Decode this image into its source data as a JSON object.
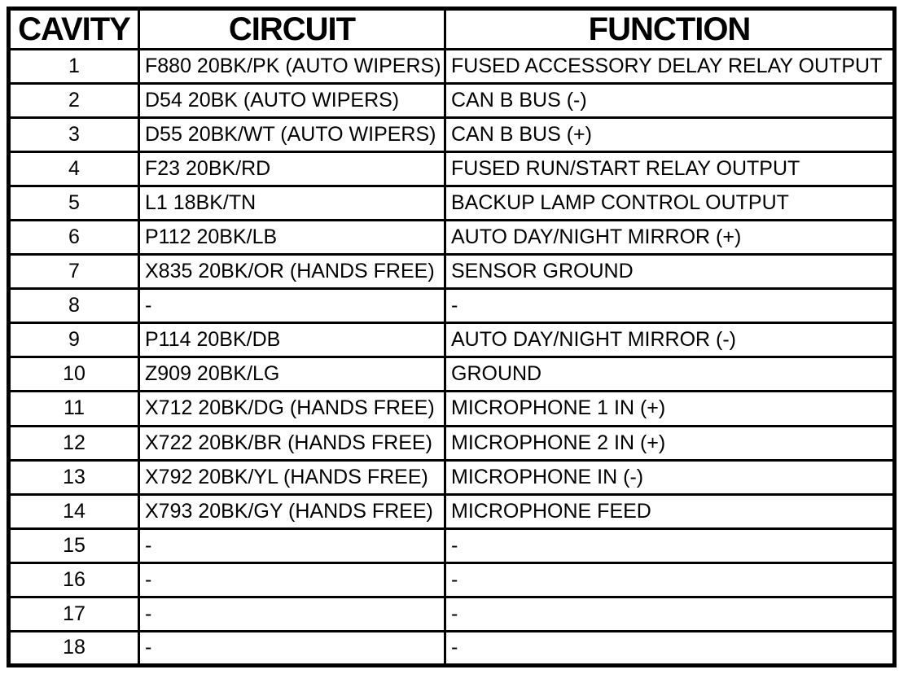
{
  "table": {
    "title": "connector-pinout-table",
    "headers": {
      "cavity": "CAVITY",
      "circuit": "CIRCUIT",
      "function": "FUNCTION"
    },
    "rows": [
      {
        "cavity": "1",
        "circuit": "F880 20BK/PK (AUTO WIPERS)",
        "function": "FUSED ACCESSORY DELAY RELAY OUTPUT"
      },
      {
        "cavity": "2",
        "circuit": "D54 20BK (AUTO WIPERS)",
        "function": "CAN B BUS (-)"
      },
      {
        "cavity": "3",
        "circuit": "D55 20BK/WT (AUTO WIPERS)",
        "function": "CAN B BUS (+)"
      },
      {
        "cavity": "4",
        "circuit": "F23 20BK/RD",
        "function": "FUSED RUN/START RELAY OUTPUT"
      },
      {
        "cavity": "5",
        "circuit": "L1 18BK/TN",
        "function": "BACKUP LAMP CONTROL OUTPUT"
      },
      {
        "cavity": "6",
        "circuit": "P112 20BK/LB",
        "function": "AUTO DAY/NIGHT MIRROR (+)"
      },
      {
        "cavity": "7",
        "circuit": "X835 20BK/OR (HANDS FREE)",
        "function": "SENSOR GROUND"
      },
      {
        "cavity": "8",
        "circuit": "-",
        "function": "-"
      },
      {
        "cavity": "9",
        "circuit": "P114 20BK/DB",
        "function": "AUTO DAY/NIGHT MIRROR (-)"
      },
      {
        "cavity": "10",
        "circuit": "Z909 20BK/LG",
        "function": "GROUND"
      },
      {
        "cavity": "11",
        "circuit": "X712 20BK/DG (HANDS FREE)",
        "function": "MICROPHONE 1 IN (+)"
      },
      {
        "cavity": "12",
        "circuit": "X722 20BK/BR (HANDS FREE)",
        "function": "MICROPHONE 2 IN (+)"
      },
      {
        "cavity": "13",
        "circuit": "X792 20BK/YL (HANDS FREE)",
        "function": "MICROPHONE IN (-)"
      },
      {
        "cavity": "14",
        "circuit": "X793 20BK/GY (HANDS FREE)",
        "function": "MICROPHONE FEED"
      },
      {
        "cavity": "15",
        "circuit": "-",
        "function": "-"
      },
      {
        "cavity": "16",
        "circuit": "-",
        "function": "-"
      },
      {
        "cavity": "17",
        "circuit": "-",
        "function": "-"
      },
      {
        "cavity": "18",
        "circuit": "-",
        "function": "-"
      }
    ],
    "colors": {
      "border": "#000000",
      "background": "#ffffff",
      "text": "#000000"
    }
  }
}
